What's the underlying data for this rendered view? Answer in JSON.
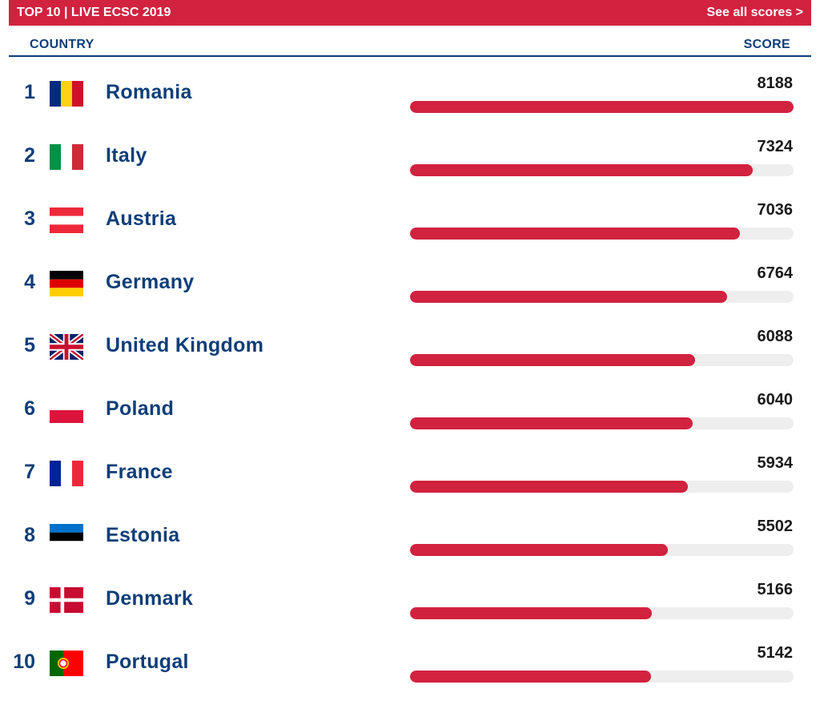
{
  "header": {
    "title": "TOP 10 | LIVE ECSC 2019",
    "see_all": "See all scores >"
  },
  "columns": {
    "country": "COUNTRY",
    "score": "SCORE"
  },
  "colors": {
    "accent": "#d1223f",
    "text": "#0f3e78",
    "track": "#eeeeee"
  },
  "max_score": 8188,
  "rows": [
    {
      "rank": "1",
      "country": "Romania",
      "score": "8188",
      "value": 8188,
      "flag": "romania-flag-icon"
    },
    {
      "rank": "2",
      "country": "Italy",
      "score": "7324",
      "value": 7324,
      "flag": "italy-flag-icon"
    },
    {
      "rank": "3",
      "country": "Austria",
      "score": "7036",
      "value": 7036,
      "flag": "austria-flag-icon"
    },
    {
      "rank": "4",
      "country": "Germany",
      "score": "6764",
      "value": 6764,
      "flag": "germany-flag-icon"
    },
    {
      "rank": "5",
      "country": "United Kingdom",
      "score": "6088",
      "value": 6088,
      "flag": "uk-flag-icon"
    },
    {
      "rank": "6",
      "country": "Poland",
      "score": "6040",
      "value": 6040,
      "flag": "poland-flag-icon"
    },
    {
      "rank": "7",
      "country": "France",
      "score": "5934",
      "value": 5934,
      "flag": "france-flag-icon"
    },
    {
      "rank": "8",
      "country": "Estonia",
      "score": "5502",
      "value": 5502,
      "flag": "estonia-flag-icon"
    },
    {
      "rank": "9",
      "country": "Denmark",
      "score": "5166",
      "value": 5166,
      "flag": "denmark-flag-icon"
    },
    {
      "rank": "10",
      "country": "Portugal",
      "score": "5142",
      "value": 5142,
      "flag": "portugal-flag-icon"
    }
  ]
}
